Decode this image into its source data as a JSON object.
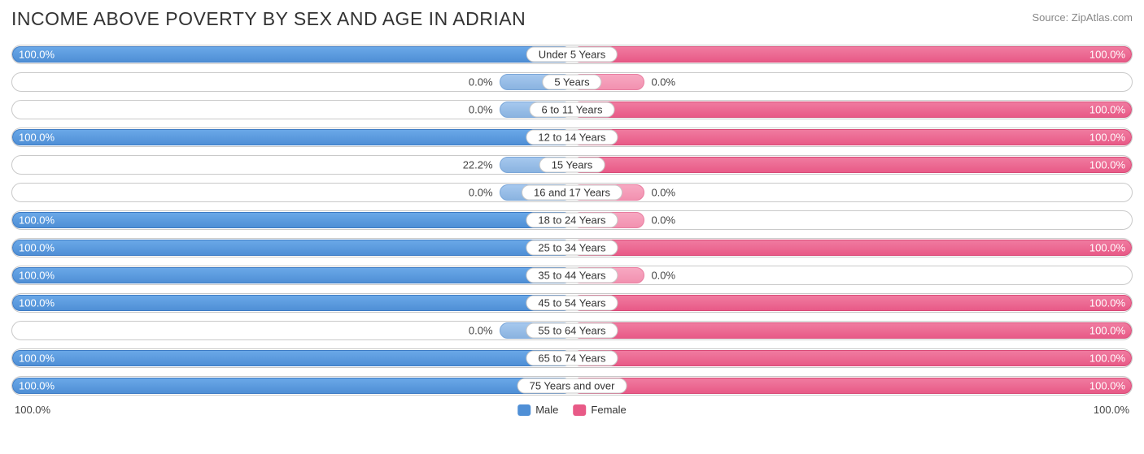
{
  "title": "INCOME ABOVE POVERTY BY SEX AND AGE IN ADRIAN",
  "source": "Source: ZipAtlas.com",
  "chart": {
    "type": "diverging-bar",
    "background_color": "#ffffff",
    "border_color": "#c9c9c9",
    "male_color": "#4f8fd6",
    "male_small_color": "#8ab3e0",
    "female_color": "#e85a87",
    "female_small_color": "#f291b0",
    "text_color": "#333333",
    "value_inside_color": "#ffffff",
    "value_outside_color": "#444444",
    "label_fontsize": 13,
    "title_fontsize": 23,
    "small_bar_threshold_pct": 30,
    "small_bar_width_pct": 13,
    "xlim": [
      0,
      100
    ],
    "rows": [
      {
        "category": "Under 5 Years",
        "male": 100.0,
        "female": 100.0,
        "male_label": "100.0%",
        "female_label": "100.0%"
      },
      {
        "category": "5 Years",
        "male": 0.0,
        "female": 0.0,
        "male_label": "0.0%",
        "female_label": "0.0%"
      },
      {
        "category": "6 to 11 Years",
        "male": 0.0,
        "female": 100.0,
        "male_label": "0.0%",
        "female_label": "100.0%"
      },
      {
        "category": "12 to 14 Years",
        "male": 100.0,
        "female": 100.0,
        "male_label": "100.0%",
        "female_label": "100.0%"
      },
      {
        "category": "15 Years",
        "male": 22.2,
        "female": 100.0,
        "male_label": "22.2%",
        "female_label": "100.0%"
      },
      {
        "category": "16 and 17 Years",
        "male": 0.0,
        "female": 0.0,
        "male_label": "0.0%",
        "female_label": "0.0%"
      },
      {
        "category": "18 to 24 Years",
        "male": 100.0,
        "female": 0.0,
        "male_label": "100.0%",
        "female_label": "0.0%"
      },
      {
        "category": "25 to 34 Years",
        "male": 100.0,
        "female": 100.0,
        "male_label": "100.0%",
        "female_label": "100.0%"
      },
      {
        "category": "35 to 44 Years",
        "male": 100.0,
        "female": 0.0,
        "male_label": "100.0%",
        "female_label": "0.0%"
      },
      {
        "category": "45 to 54 Years",
        "male": 100.0,
        "female": 100.0,
        "male_label": "100.0%",
        "female_label": "100.0%"
      },
      {
        "category": "55 to 64 Years",
        "male": 0.0,
        "female": 100.0,
        "male_label": "0.0%",
        "female_label": "100.0%"
      },
      {
        "category": "65 to 74 Years",
        "male": 100.0,
        "female": 100.0,
        "male_label": "100.0%",
        "female_label": "100.0%"
      },
      {
        "category": "75 Years and over",
        "male": 100.0,
        "female": 100.0,
        "male_label": "100.0%",
        "female_label": "100.0%"
      }
    ]
  },
  "axis": {
    "left": "100.0%",
    "right": "100.0%"
  },
  "legend": {
    "male": "Male",
    "female": "Female",
    "male_swatch": "#4f8fd6",
    "female_swatch": "#e85a87"
  }
}
